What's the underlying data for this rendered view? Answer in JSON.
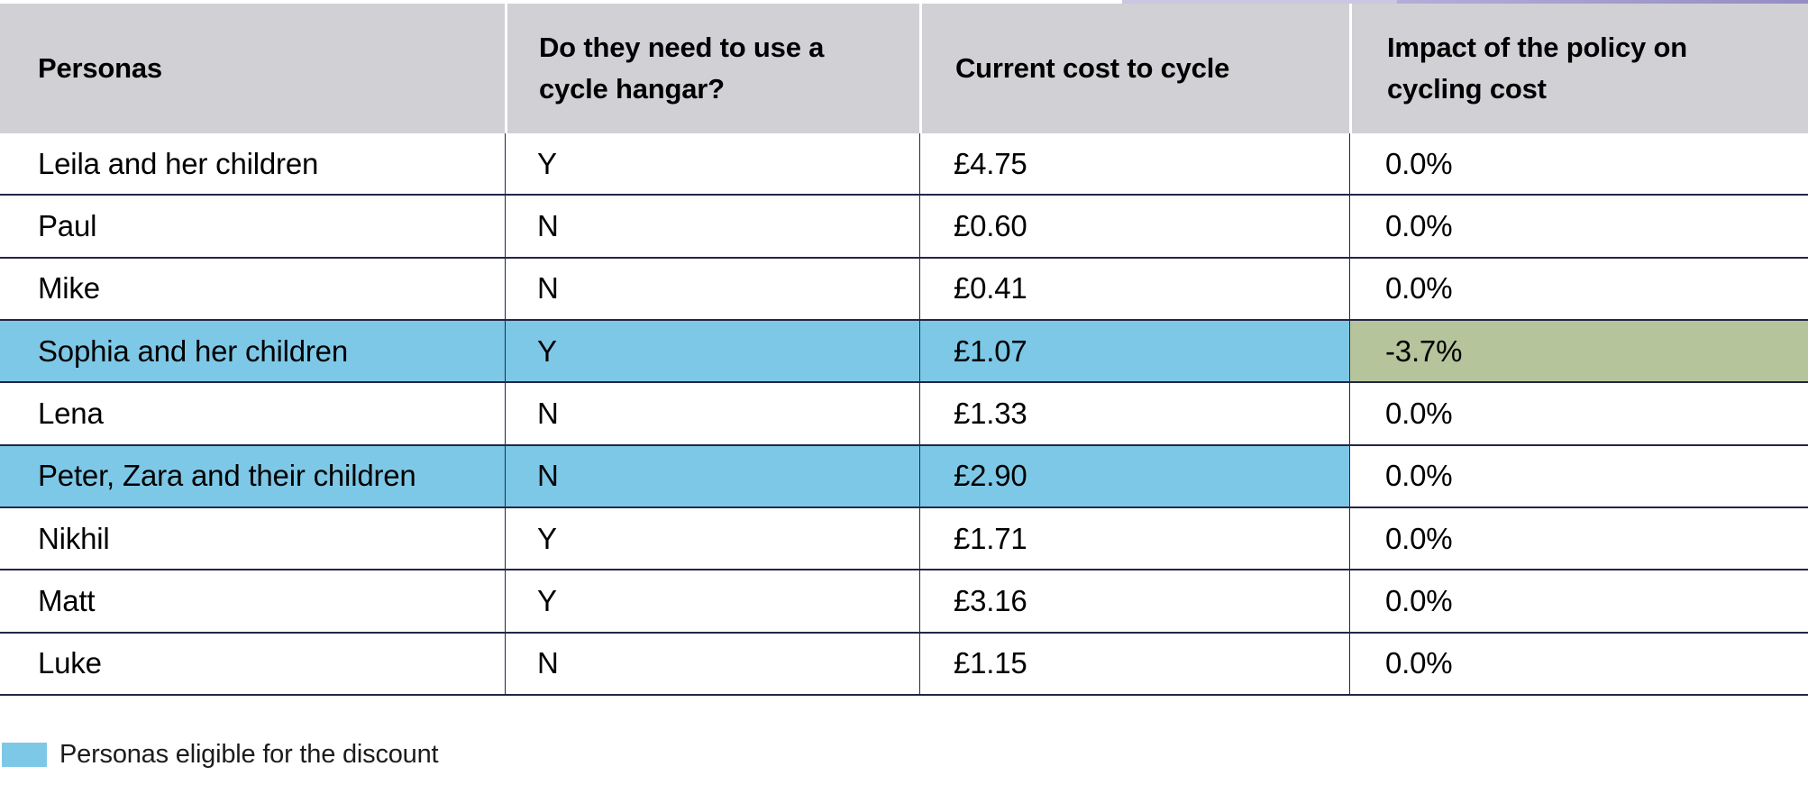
{
  "chart_data": {
    "type": "table",
    "title": "",
    "columns": [
      "Personas",
      "Do they need to use a cycle hangar?",
      "Current cost to cycle",
      "Impact of the policy on cycling cost"
    ],
    "rows": [
      [
        "Leila and her children",
        "Y",
        "£4.75",
        "0.0%"
      ],
      [
        "Paul",
        "N",
        "£0.60",
        "0.0%"
      ],
      [
        "Mike",
        "N",
        "£0.41",
        "0.0%"
      ],
      [
        "Sophia and her children",
        "Y",
        "£1.07",
        "-3.7%"
      ],
      [
        "Lena",
        "N",
        "£1.33",
        "0.0%"
      ],
      [
        "Peter, Zara and their children",
        "N",
        "£2.90",
        "0.0%"
      ],
      [
        "Nikhil",
        "Y",
        "£1.71",
        "0.0%"
      ],
      [
        "Matt",
        "Y",
        "£3.16",
        "0.0%"
      ],
      [
        "Luke",
        "N",
        "£1.15",
        "0.0%"
      ]
    ],
    "highlighted_rows_blue": [
      "Sophia and her children",
      "Peter, Zara and their children"
    ],
    "highlighted_cell_green": {
      "row": "Sophia and her children",
      "column": "Impact of the policy on cycling cost",
      "value": "-3.7%"
    },
    "legend": "Personas eligible for the discount"
  },
  "table": {
    "columns": [
      {
        "label": "Personas"
      },
      {
        "label": "Do they need to use a cycle hangar?"
      },
      {
        "label": "Current cost to cycle"
      },
      {
        "label": "Impact of the policy on cycling cost"
      }
    ],
    "rows": [
      {
        "persona": "Leila and her children",
        "hangar": "Y",
        "cost": "£4.75",
        "impact": "0.0%",
        "row_color": "none",
        "impact_color": "none"
      },
      {
        "persona": "Paul",
        "hangar": "N",
        "cost": "£0.60",
        "impact": "0.0%",
        "row_color": "none",
        "impact_color": "none"
      },
      {
        "persona": "Mike",
        "hangar": "N",
        "cost": "£0.41",
        "impact": "0.0%",
        "row_color": "none",
        "impact_color": "none"
      },
      {
        "persona": "Sophia and her children",
        "hangar": "Y",
        "cost": "£1.07",
        "impact": "-3.7%",
        "row_color": "blue",
        "impact_color": "green"
      },
      {
        "persona": "Lena",
        "hangar": "N",
        "cost": "£1.33",
        "impact": "0.0%",
        "row_color": "none",
        "impact_color": "none"
      },
      {
        "persona": "Peter, Zara and their children",
        "hangar": "N",
        "cost": "£2.90",
        "impact": "0.0%",
        "row_color": "blue",
        "impact_color": "none"
      },
      {
        "persona": "Nikhil",
        "hangar": "Y",
        "cost": "£1.71",
        "impact": "0.0%",
        "row_color": "none",
        "impact_color": "none"
      },
      {
        "persona": "Matt",
        "hangar": "Y",
        "cost": "£3.16",
        "impact": "0.0%",
        "row_color": "none",
        "impact_color": "none"
      },
      {
        "persona": "Luke",
        "hangar": "N",
        "cost": "£1.15",
        "impact": "0.0%",
        "row_color": "none",
        "impact_color": "none"
      }
    ]
  },
  "legend": {
    "label": "Personas eligible for the discount",
    "swatch_color": "#7EC8E7"
  },
  "colors": {
    "highlight_blue": "#7EC8E7",
    "highlight_green": "#B5C49B",
    "header_bg": "#D1D0D5",
    "grid_border": "#232645",
    "top_artifact_light": "#CAC7E3",
    "top_artifact_dark": "#938DC4"
  }
}
